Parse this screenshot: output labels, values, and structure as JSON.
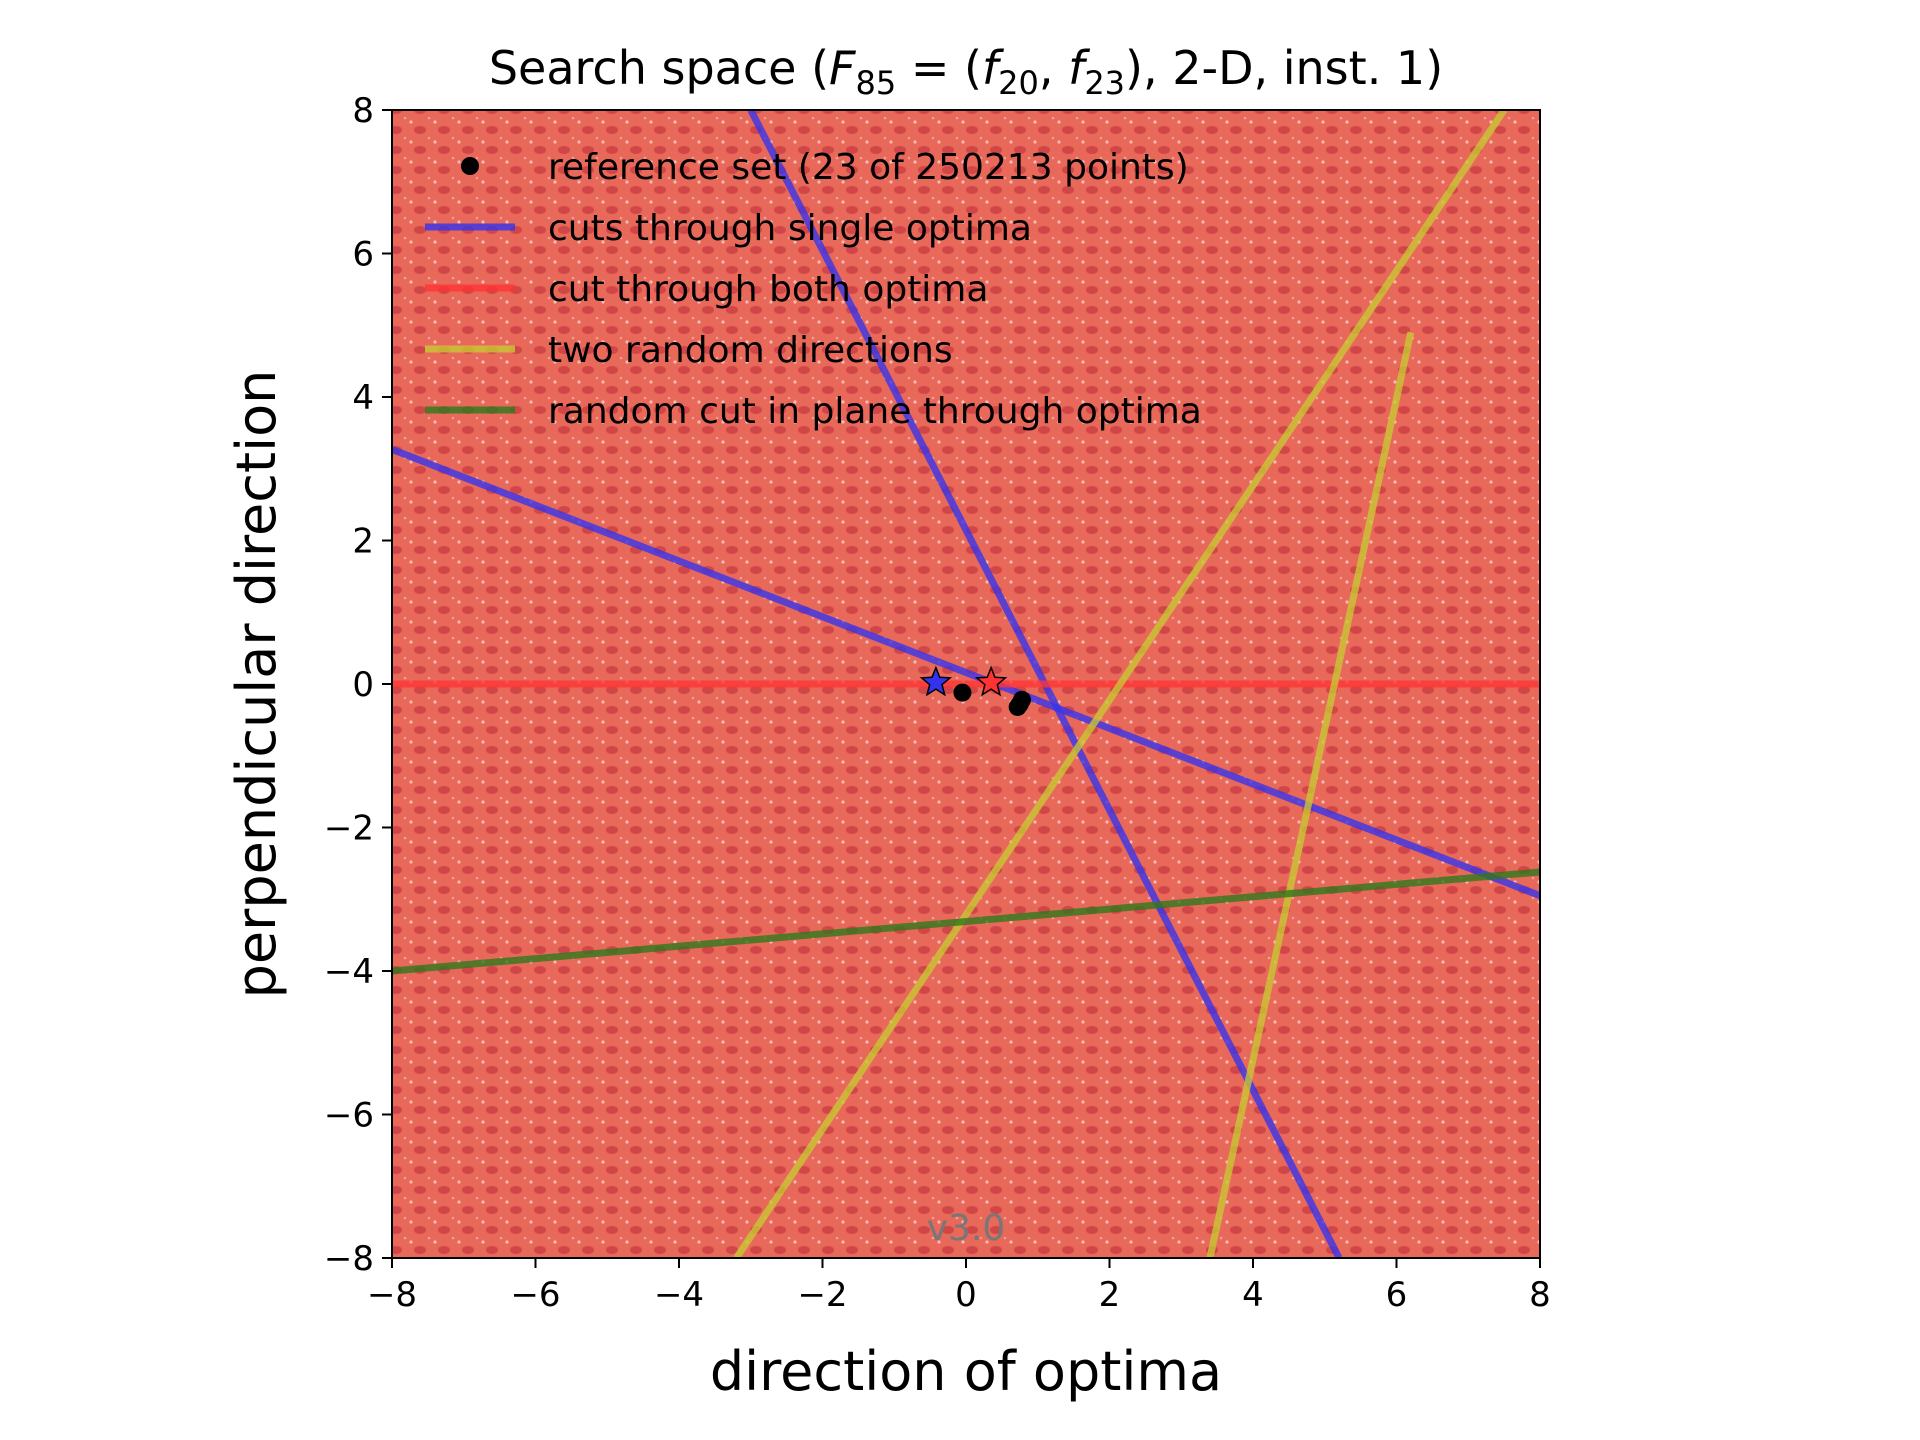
{
  "chart_data": {
    "type": "line",
    "title_parts": {
      "prefix": "Search space (",
      "F": "F",
      "F_sub": "85",
      "eq": " = (",
      "f1": "f",
      "f1_sub": "20",
      "comma": ", ",
      "f2": "f",
      "f2_sub": "23",
      "suffix": "), 2-D, inst. 1)"
    },
    "xlabel": "direction of optima",
    "ylabel": "perpendicular direction",
    "xlim": [
      -8,
      8
    ],
    "ylim": [
      -8,
      8
    ],
    "xticks": [
      -8,
      -6,
      -4,
      -2,
      0,
      2,
      4,
      6,
      8
    ],
    "yticks": [
      -8,
      -6,
      -4,
      -2,
      0,
      2,
      4,
      6,
      8
    ],
    "xtick_labels": [
      "−8",
      "−6",
      "−4",
      "−2",
      "0",
      "2",
      "4",
      "6",
      "8"
    ],
    "ytick_labels": [
      "−8",
      "−6",
      "−4",
      "−2",
      "0",
      "2",
      "4",
      "6",
      "8"
    ],
    "version": "v3.0",
    "legend": {
      "placement": "upper-left",
      "entries": [
        {
          "label": "reference set (23 of 250213 points)",
          "color": "#000000",
          "marker": "dot"
        },
        {
          "label": "cuts through single optima",
          "color": "#3333ee",
          "marker": "line"
        },
        {
          "label": "cut through both optima",
          "color": "#ff3333",
          "marker": "line"
        },
        {
          "label": "two random directions",
          "color": "#c8c832",
          "marker": "line"
        },
        {
          "label": "random cut in plane through optima",
          "color": "#2a7a1a",
          "marker": "line"
        }
      ]
    },
    "colors": {
      "background": "#e8685a",
      "blue": "#3333ee",
      "red": "#ff3333",
      "yellow": "#c8c832",
      "green": "#2a7a1a",
      "black": "#000000"
    },
    "series": [
      {
        "name": "cuts through single optima",
        "color": "#3333ee",
        "x": [
          -8,
          8
        ],
        "y": [
          3.27,
          -2.95
        ]
      },
      {
        "name": "cuts through single optima",
        "color": "#3333ee",
        "x": [
          -3.0,
          5.2
        ],
        "y": [
          8,
          -8
        ]
      },
      {
        "name": "cut through both optima",
        "color": "#ff3333",
        "x": [
          -8,
          8
        ],
        "y": [
          0,
          0
        ]
      },
      {
        "name": "two random directions",
        "color": "#c8c832",
        "x": [
          -3.2,
          7.5
        ],
        "y": [
          -8,
          8
        ]
      },
      {
        "name": "two random directions",
        "color": "#c8c832",
        "x": [
          3.4,
          6.2
        ],
        "y": [
          -8,
          4.9
        ]
      },
      {
        "name": "random cut in plane through optima",
        "color": "#2a7a1a",
        "x": [
          -8,
          8
        ],
        "y": [
          -4.0,
          -2.62
        ]
      }
    ],
    "reference_points": {
      "x": [
        -0.05,
        0.72,
        0.75,
        0.78
      ],
      "y": [
        -0.12,
        -0.32,
        -0.28,
        -0.22
      ]
    },
    "optima": {
      "x": [
        -0.42,
        0.35
      ],
      "y": [
        0.02,
        0.02
      ],
      "colors": [
        "#3333ee",
        "#ff3333"
      ]
    }
  }
}
